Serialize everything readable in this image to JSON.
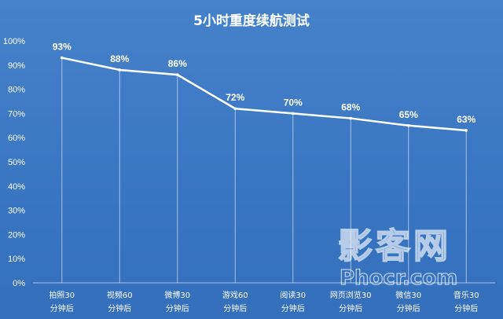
{
  "chart_data": {
    "type": "line",
    "title": "5小时重度续航测试",
    "xlabel": "",
    "ylabel": "",
    "ylim": [
      0,
      100
    ],
    "yticks": [
      "0%",
      "10%",
      "20%",
      "30%",
      "40%",
      "50%",
      "60%",
      "70%",
      "80%",
      "90%",
      "100%"
    ],
    "categories": [
      [
        "拍照30",
        "分钟后"
      ],
      [
        "视频60",
        "分钟后"
      ],
      [
        "微博30",
        "分钟后"
      ],
      [
        "游戏60",
        "分钟后"
      ],
      [
        "阅读30",
        "分钟后"
      ],
      [
        "网页浏览30",
        "分钟后"
      ],
      [
        "微信30",
        "分钟后"
      ],
      [
        "音乐30",
        "分钟后"
      ]
    ],
    "series": [
      {
        "values": [
          93,
          88,
          86,
          72,
          70,
          68,
          65,
          63
        ]
      }
    ],
    "data_labels": [
      "93%",
      "88%",
      "86%",
      "72%",
      "70%",
      "68%",
      "65%",
      "63%"
    ],
    "grid": false,
    "colors": {
      "background": "#3b78c3",
      "line": "#ffffff",
      "text": "#ffffff"
    }
  },
  "watermark": {
    "chinese": "影客网",
    "english": "Phocr.com"
  }
}
